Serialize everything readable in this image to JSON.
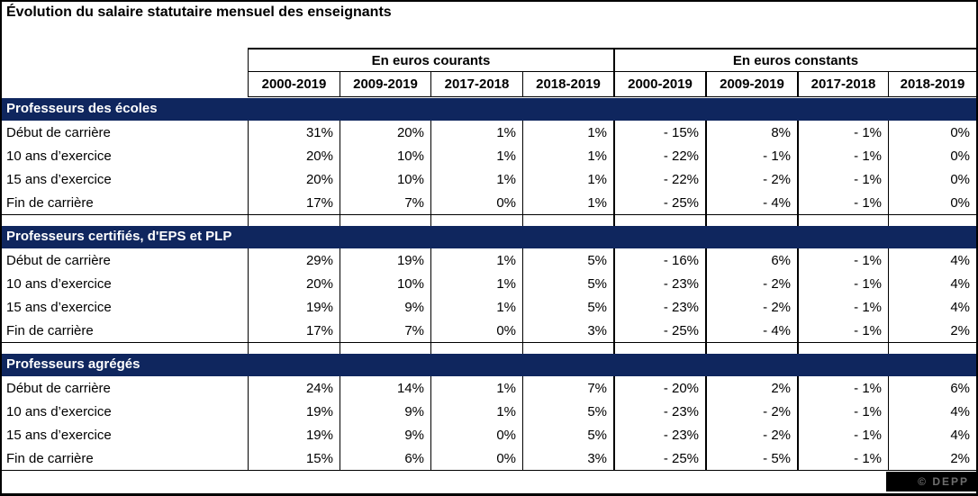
{
  "chart_data": {
    "type": "table",
    "title": "Évolution du salaire statutaire mensuel des enseignants",
    "column_groups": [
      {
        "label": "En euros courants"
      },
      {
        "label": "En euros constants"
      }
    ],
    "columns": [
      "2000-2019",
      "2009-2019",
      "2017-2018",
      "2018-2019",
      "2000-2019",
      "2009-2019",
      "2017-2018",
      "2018-2019"
    ],
    "sections": [
      {
        "header": "Professeurs des écoles",
        "rows": [
          {
            "label": "Début de carrière",
            "values": [
              "31%",
              "20%",
              "1%",
              "1%",
              "- 15%",
              "8%",
              "- 1%",
              "0%"
            ]
          },
          {
            "label": "10 ans d’exercice",
            "values": [
              "20%",
              "10%",
              "1%",
              "1%",
              "- 22%",
              "- 1%",
              "- 1%",
              "0%"
            ]
          },
          {
            "label": "15 ans d’exercice",
            "values": [
              "20%",
              "10%",
              "1%",
              "1%",
              "- 22%",
              "- 2%",
              "- 1%",
              "0%"
            ]
          },
          {
            "label": "Fin de carrière",
            "values": [
              "17%",
              "7%",
              "0%",
              "1%",
              "- 25%",
              "- 4%",
              "- 1%",
              "0%"
            ]
          }
        ]
      },
      {
        "header": "Professeurs certifiés, d'EPS et PLP",
        "rows": [
          {
            "label": "Début de carrière",
            "values": [
              "29%",
              "19%",
              "1%",
              "5%",
              "- 16%",
              "6%",
              "- 1%",
              "4%"
            ]
          },
          {
            "label": "10 ans d’exercice",
            "values": [
              "20%",
              "10%",
              "1%",
              "5%",
              "- 23%",
              "- 2%",
              "- 1%",
              "4%"
            ]
          },
          {
            "label": "15 ans d’exercice",
            "values": [
              "19%",
              "9%",
              "1%",
              "5%",
              "- 23%",
              "- 2%",
              "- 1%",
              "4%"
            ]
          },
          {
            "label": "Fin de carrière",
            "values": [
              "17%",
              "7%",
              "0%",
              "3%",
              "- 25%",
              "- 4%",
              "- 1%",
              "2%"
            ]
          }
        ]
      },
      {
        "header": "Professeurs agrégés",
        "rows": [
          {
            "label": "Début de carrière",
            "values": [
              "24%",
              "14%",
              "1%",
              "7%",
              "- 20%",
              "2%",
              "- 1%",
              "6%"
            ]
          },
          {
            "label": "10 ans d’exercice",
            "values": [
              "19%",
              "9%",
              "1%",
              "5%",
              "- 23%",
              "- 2%",
              "- 1%",
              "4%"
            ]
          },
          {
            "label": "15 ans d’exercice",
            "values": [
              "19%",
              "9%",
              "0%",
              "5%",
              "- 23%",
              "- 2%",
              "- 1%",
              "4%"
            ]
          },
          {
            "label": "Fin de carrière",
            "values": [
              "15%",
              "6%",
              "0%",
              "3%",
              "- 25%",
              "- 5%",
              "- 1%",
              "2%"
            ]
          }
        ]
      }
    ],
    "credit": "© DEPP",
    "layout": {
      "grid": "off",
      "section_header_style": "navy-band",
      "value_alignment": "right"
    }
  },
  "colors": {
    "section_band": "#0F265E",
    "badge_bg": "#000000",
    "badge_text": "#6E6E6E"
  }
}
